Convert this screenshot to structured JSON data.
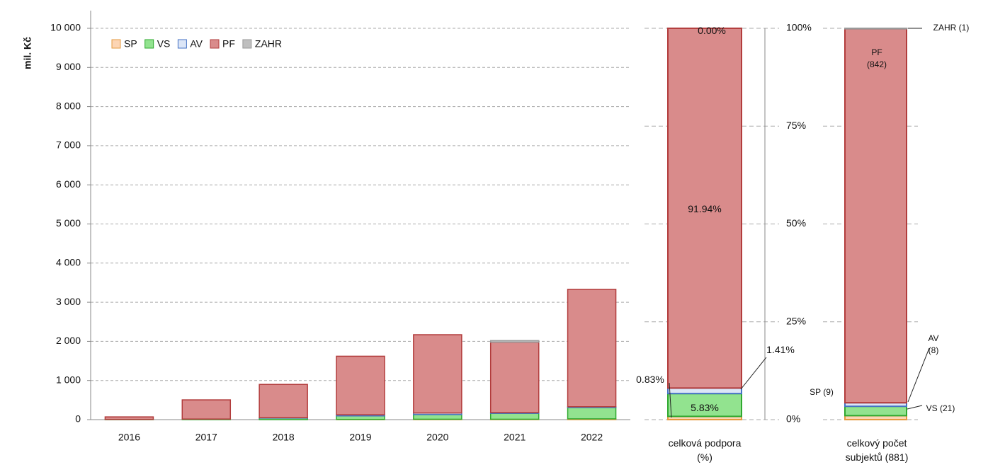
{
  "chart_data": [
    {
      "type": "stacked_bar",
      "ylabel": "mil. Kč",
      "categories": [
        "2016",
        "2017",
        "2018",
        "2019",
        "2020",
        "2021",
        "2022"
      ],
      "series": [
        {
          "name": "SP",
          "color": "#fcd5b4",
          "edgecolor": "#e59b40",
          "values": [
            0,
            0,
            0,
            5,
            10,
            10,
            20
          ]
        },
        {
          "name": "VS",
          "color": "#92e38f",
          "edgecolor": "#2fa82f",
          "values": [
            5,
            15,
            40,
            90,
            120,
            150,
            290
          ]
        },
        {
          "name": "AV",
          "color": "#dce6f7",
          "edgecolor": "#4472c4",
          "values": [
            0,
            0,
            10,
            30,
            40,
            20,
            20
          ]
        },
        {
          "name": "PF",
          "color": "#d98b8b",
          "edgecolor": "#b23c3c",
          "values": [
            65,
            490,
            850,
            1495,
            2000,
            1800,
            3000
          ]
        },
        {
          "name": "ZAHR",
          "color": "#bfbfbf",
          "edgecolor": "#9a9a9a",
          "values": [
            0,
            0,
            0,
            0,
            0,
            40,
            0
          ]
        }
      ],
      "ylim": [
        0,
        10000
      ],
      "yticks": [
        0,
        {
          "value": 1000,
          "label": "1 000"
        },
        {
          "value": 2000,
          "label": "2 000"
        },
        {
          "value": 3000,
          "label": "3 000"
        },
        {
          "value": 4000,
          "label": "4 000"
        },
        {
          "value": 5000,
          "label": "5 000"
        },
        {
          "value": 6000,
          "label": "6 000"
        },
        {
          "value": 7000,
          "label": "7 000"
        },
        {
          "value": 8000,
          "label": "8 000"
        },
        {
          "value": 9000,
          "label": "9 000"
        },
        {
          "value": 10000,
          "label": "10 000"
        }
      ],
      "grid": true,
      "legend": "top-left"
    },
    {
      "type": "stacked_column",
      "category": "celková podpora\n(%)",
      "values": [
        0.83,
        5.83,
        1.41,
        91.94,
        0.0
      ],
      "value_labels": [
        "0.83%",
        "5.83%",
        "1.41%",
        "91.94%",
        "0.00%"
      ],
      "colors": [
        "#fcd5b4",
        "#92e38f",
        "#dce6f7",
        "#d98b8b",
        "#bfbfbf"
      ],
      "edgecolors": [
        "#e59b40",
        "#2fa82f",
        "#4472c4",
        "#b23c3c",
        "#9a9a9a"
      ],
      "ylim": [
        0,
        100
      ],
      "yticks": [
        {
          "value": 0,
          "label": "0%"
        },
        {
          "value": 25,
          "label": "25%"
        },
        {
          "value": 50,
          "label": "50%"
        },
        {
          "value": 75,
          "label": "75%"
        },
        {
          "value": 100,
          "label": "100%"
        }
      ],
      "grid": true
    },
    {
      "type": "stacked_column",
      "category": "celkový počet\nsubjektů (881)",
      "values": [
        9,
        21,
        8,
        842,
        1
      ],
      "value_labels": [
        "SP (9)",
        "VS (21)",
        "AV\n(8)",
        "PF\n(842)",
        "ZAHR (1)"
      ],
      "colors": [
        "#fcd5b4",
        "#92e38f",
        "#dce6f7",
        "#d98b8b",
        "#bfbfbf"
      ],
      "edgecolors": [
        "#e59b40",
        "#2fa82f",
        "#4472c4",
        "#b23c3c",
        "#9a9a9a"
      ],
      "ylim": [
        0,
        881
      ],
      "grid": true
    }
  ]
}
